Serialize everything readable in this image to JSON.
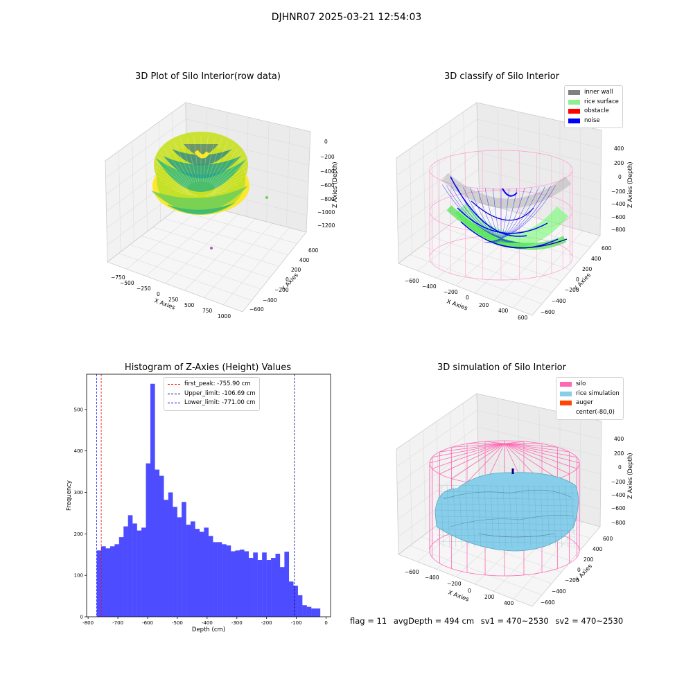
{
  "figure": {
    "suptitle": "DJHNR07 2025-03-21 12:54:03",
    "footer": {
      "flag": "flag = 11",
      "avg_depth": "avgDepth = 494 cm",
      "sv1": "sv1 = 470~2530",
      "sv2": "sv2 = 470~2530"
    }
  },
  "chart_data": [
    {
      "type": "scatter",
      "title": "3D Plot of Silo Interior(row data)",
      "xlabel": "X Axies",
      "ylabel": "Y Axies",
      "zlabel": "Z Axies (Depth)",
      "x_ticks": [
        "−750",
        "−500",
        "−250",
        "0",
        "250",
        "500",
        "750",
        "1000"
      ],
      "y_ticks": [
        "−600",
        "−400",
        "−200",
        "0",
        "200",
        "400",
        "600"
      ],
      "z_ticks": [
        "0",
        "−200",
        "−400",
        "−600",
        "−800",
        "−1000",
        "−1200"
      ],
      "colormap": [
        "#fde725",
        "#b5de2b",
        "#6ece58",
        "#35b779",
        "#1f9e89",
        "#26828e",
        "#31688e"
      ]
    },
    {
      "type": "scatter",
      "title": "3D classify of Silo Interior",
      "xlabel": "X Axies",
      "ylabel": "Y Axies",
      "zlabel": "Z Axies (Depth)",
      "x_ticks": [
        "−600",
        "−400",
        "−200",
        "0",
        "200",
        "400",
        "600"
      ],
      "y_ticks": [
        "−600",
        "−400",
        "−200",
        "0",
        "200",
        "400",
        "600"
      ],
      "z_ticks": [
        "400",
        "200",
        "0",
        "−200",
        "−400",
        "−600",
        "−800"
      ],
      "legend": [
        {
          "label": "inner wall",
          "color": "#808080"
        },
        {
          "label": "rice surface",
          "color": "#90ee90"
        },
        {
          "label": "obstacle",
          "color": "#ff0000"
        },
        {
          "label": "noise",
          "color": "#0000ff"
        }
      ]
    },
    {
      "type": "bar",
      "title": "Histogram of Z-Axies (Height) Values",
      "xlabel": "Depth (cm)",
      "ylabel": "Frequency",
      "xlim": [
        -805,
        15
      ],
      "ylim": [
        0,
        585
      ],
      "x_ticks": [
        -800,
        -700,
        -600,
        -500,
        -400,
        -300,
        -200,
        -100,
        0
      ],
      "y_ticks": [
        0,
        100,
        200,
        300,
        400,
        500
      ],
      "bin_start": -771,
      "bin_width": 15.02,
      "bar_color": "#4d4dff",
      "values": [
        160,
        170,
        165,
        170,
        175,
        192,
        218,
        245,
        225,
        208,
        215,
        370,
        562,
        355,
        340,
        282,
        300,
        265,
        240,
        277,
        222,
        230,
        212,
        205,
        215,
        195,
        180,
        180,
        175,
        172,
        158,
        160,
        162,
        158,
        142,
        155,
        137,
        155,
        137,
        142,
        152,
        120,
        157,
        85,
        75,
        52,
        28,
        24,
        20,
        20
      ],
      "vlines": [
        {
          "label": "first_peak: -755.90 cm",
          "x": -755.9,
          "color": "#ff0000"
        },
        {
          "label": "Upper_limit: -106.69 cm",
          "x": -106.69,
          "color": "#00008b"
        },
        {
          "label": "Lower_limit: -771.00 cm",
          "x": -771.0,
          "color": "#0000ff"
        }
      ]
    },
    {
      "type": "area",
      "title": "3D simulation of Silo Interior",
      "xlabel": "X Axies",
      "ylabel": "Y Axies",
      "zlabel": "Z Axies (Depth)",
      "x_ticks": [
        "−600",
        "−400",
        "−200",
        "0",
        "200",
        "400"
      ],
      "y_ticks": [
        "−600",
        "−400",
        "−200",
        "0",
        "200",
        "400",
        "600"
      ],
      "z_ticks": [
        "400",
        "200",
        "0",
        "−200",
        "−400",
        "−600",
        "−800"
      ],
      "legend": [
        {
          "label": "silo",
          "color": "#ff69b4"
        },
        {
          "label": "rice simulation",
          "color": "#87ceeb"
        },
        {
          "label": "auger",
          "color": "#ff4500"
        },
        {
          "label": "center(-80,0)",
          "color": "#ffffff"
        }
      ]
    }
  ]
}
